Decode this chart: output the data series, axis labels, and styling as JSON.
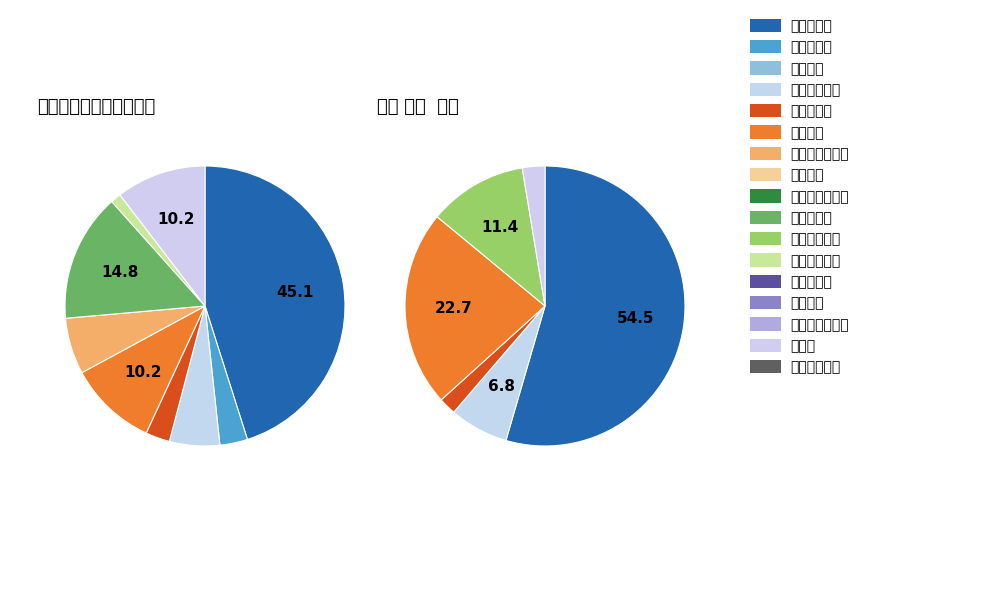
{
  "title_left": "パ・リーグ全プレイヤー",
  "title_right": "田宮 裕涼  選手",
  "legend_labels": [
    "ストレート",
    "ツーシーム",
    "シュート",
    "カットボール",
    "スプリット",
    "フォーク",
    "チェンジアップ",
    "シンカー",
    "高速スライダー",
    "スライダー",
    "縦スライダー",
    "パワーカーブ",
    "スクリュー",
    "ナックル",
    "ナックルカーブ",
    "カーブ",
    "スローカーブ"
  ],
  "legend_colors": [
    "#2166b0",
    "#4ba3d2",
    "#90bfdc",
    "#c2d8ee",
    "#d94e1a",
    "#f07d2c",
    "#f5ae6a",
    "#f5d09a",
    "#2e8b40",
    "#6ab565",
    "#98d068",
    "#c8e89a",
    "#5c4fa0",
    "#8b85c8",
    "#b0aae0",
    "#d0cdf0",
    "#606060"
  ],
  "left_slices": [
    {
      "label": "ストレート",
      "value": 45.1,
      "color": "#2166b0",
      "show_label": "45.1"
    },
    {
      "label": "ツーシーム",
      "value": 3.2,
      "color": "#4ba3d2",
      "show_label": ""
    },
    {
      "label": "カットボール",
      "value": 5.8,
      "color": "#c2d8ee",
      "show_label": ""
    },
    {
      "label": "スプリット",
      "value": 2.8,
      "color": "#d94e1a",
      "show_label": ""
    },
    {
      "label": "フォーク",
      "value": 10.2,
      "color": "#f07d2c",
      "show_label": "10.2"
    },
    {
      "label": "チェンジアップ",
      "value": 6.5,
      "color": "#f5ae6a",
      "show_label": ""
    },
    {
      "label": "スライダー",
      "value": 14.8,
      "color": "#6ab565",
      "show_label": "14.8"
    },
    {
      "label": "パワーカーブ",
      "value": 1.2,
      "color": "#c8e89a",
      "show_label": ""
    },
    {
      "label": "カーブ",
      "value": 10.4,
      "color": "#d0cdf0",
      "show_label": ""
    }
  ],
  "right_slices": [
    {
      "label": "ストレート",
      "value": 54.5,
      "color": "#2166b0",
      "show_label": "54.5"
    },
    {
      "label": "カットボール",
      "value": 6.8,
      "color": "#c2d8ee",
      "show_label": "6.8"
    },
    {
      "label": "スプリット",
      "value": 2.0,
      "color": "#d94e1a",
      "show_label": ""
    },
    {
      "label": "フォーク",
      "value": 22.7,
      "color": "#f07d2c",
      "show_label": "22.7"
    },
    {
      "label": "縦スライダー",
      "value": 11.4,
      "color": "#98d068",
      "show_label": "11.4"
    },
    {
      "label": "カーブ",
      "value": 2.6,
      "color": "#d0cdf0",
      "show_label": ""
    }
  ],
  "background_color": "#ffffff",
  "text_color": "#000000",
  "label_fontsize": 11,
  "title_fontsize": 13,
  "legend_fontsize": 10
}
